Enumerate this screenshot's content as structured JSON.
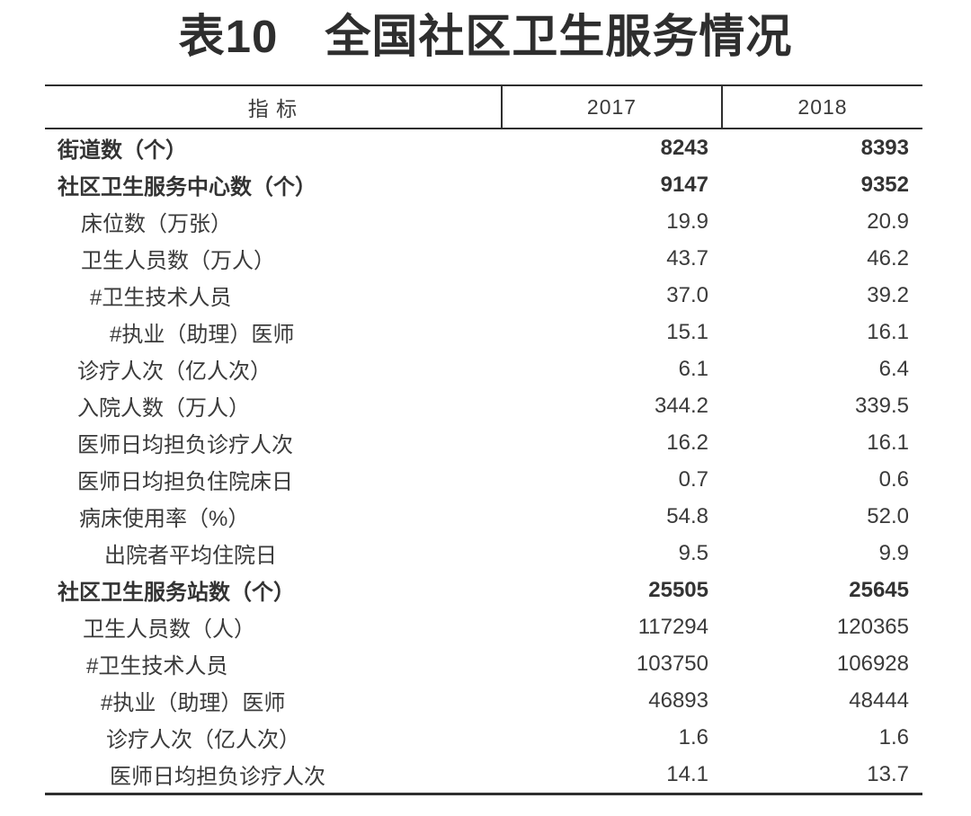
{
  "title": "表10　全国社区卫生服务情况",
  "table": {
    "columns": [
      "指 标",
      "2017",
      "2018"
    ],
    "rows": [
      {
        "label": "街道数（个）",
        "v2017": "8243",
        "v2018": "8393",
        "bold": true,
        "indent": 14
      },
      {
        "label": "社区卫生服务中心数（个）",
        "v2017": "9147",
        "v2018": "9352",
        "bold": true,
        "indent": 14
      },
      {
        "label": "床位数（万张）",
        "v2017": "19.9",
        "v2018": "20.9",
        "bold": false,
        "indent": 40
      },
      {
        "label": "卫生人员数（万人）",
        "v2017": "43.7",
        "v2018": "46.2",
        "bold": false,
        "indent": 40
      },
      {
        "label": "#卫生技术人员",
        "v2017": "37.0",
        "v2018": "39.2",
        "bold": false,
        "indent": 50
      },
      {
        "label": "#执业（助理）医师",
        "v2017": "15.1",
        "v2018": "16.1",
        "bold": false,
        "indent": 72
      },
      {
        "label": "诊疗人次（亿人次）",
        "v2017": "6.1",
        "v2018": "6.4",
        "bold": false,
        "indent": 36
      },
      {
        "label": "入院人数（万人）",
        "v2017": "344.2",
        "v2018": "339.5",
        "bold": false,
        "indent": 36
      },
      {
        "label": "医师日均担负诊疗人次",
        "v2017": "16.2",
        "v2018": "16.1",
        "bold": false,
        "indent": 36
      },
      {
        "label": "医师日均担负住院床日",
        "v2017": "0.7",
        "v2018": "0.6",
        "bold": false,
        "indent": 36
      },
      {
        "label": "病床使用率（%）",
        "v2017": "54.8",
        "v2018": "52.0",
        "bold": false,
        "indent": 38
      },
      {
        "label": "出院者平均住院日",
        "v2017": "9.5",
        "v2018": "9.9",
        "bold": false,
        "indent": 66
      },
      {
        "label": "社区卫生服务站数（个）",
        "v2017": "25505",
        "v2018": "25645",
        "bold": true,
        "indent": 14
      },
      {
        "label": "卫生人员数（人）",
        "v2017": "117294",
        "v2018": "120365",
        "bold": false,
        "indent": 42
      },
      {
        "label": "#卫生技术人员",
        "v2017": "103750",
        "v2018": "106928",
        "bold": false,
        "indent": 46
      },
      {
        "label": "#执业（助理）医师",
        "v2017": "46893",
        "v2018": "48444",
        "bold": false,
        "indent": 62
      },
      {
        "label": "诊疗人次（亿人次）",
        "v2017": "1.6",
        "v2018": "1.6",
        "bold": false,
        "indent": 68
      },
      {
        "label": "医师日均担负诊疗人次",
        "v2017": "14.1",
        "v2018": "13.7",
        "bold": false,
        "indent": 72
      }
    ]
  },
  "colors": {
    "background": "#ffffff",
    "text": "#3a3a3a",
    "bold_text": "#333333",
    "border": "#2e2e2e"
  }
}
